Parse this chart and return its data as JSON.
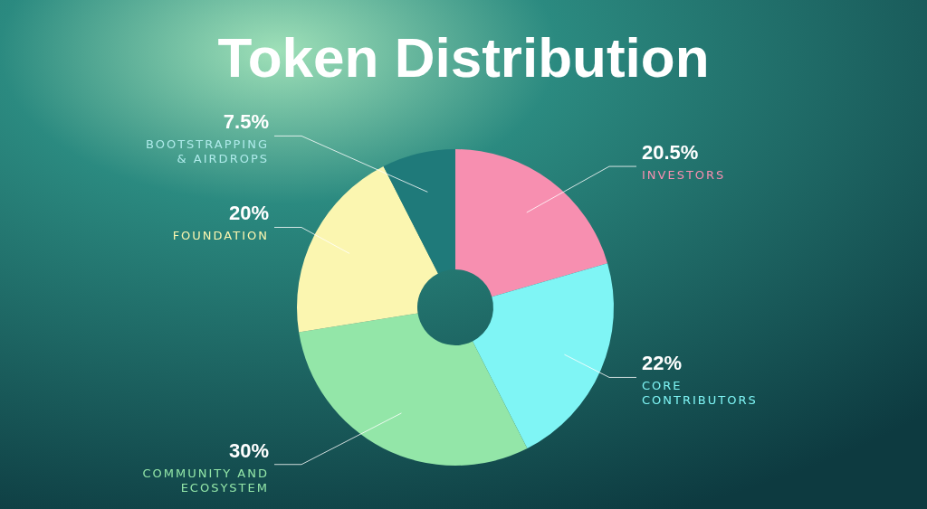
{
  "chart_data": {
    "type": "donut",
    "title": "Token Distribution",
    "categories": [
      "INVESTORS",
      "CORE CONTRIBUTORS",
      "COMMUNITY AND ECOSYSTEM",
      "FOUNDATION",
      "BOOTSTRAPPING & AIRDROPS"
    ],
    "values": [
      20.5,
      22,
      30,
      20,
      7.5
    ],
    "colors": [
      "#f78fb0",
      "#7ff5f5",
      "#93e6a8",
      "#fbf6b0",
      "#1f7a7a"
    ],
    "value_labels": [
      "20.5%",
      "22%",
      "30%",
      "20%",
      "7.5%"
    ]
  }
}
